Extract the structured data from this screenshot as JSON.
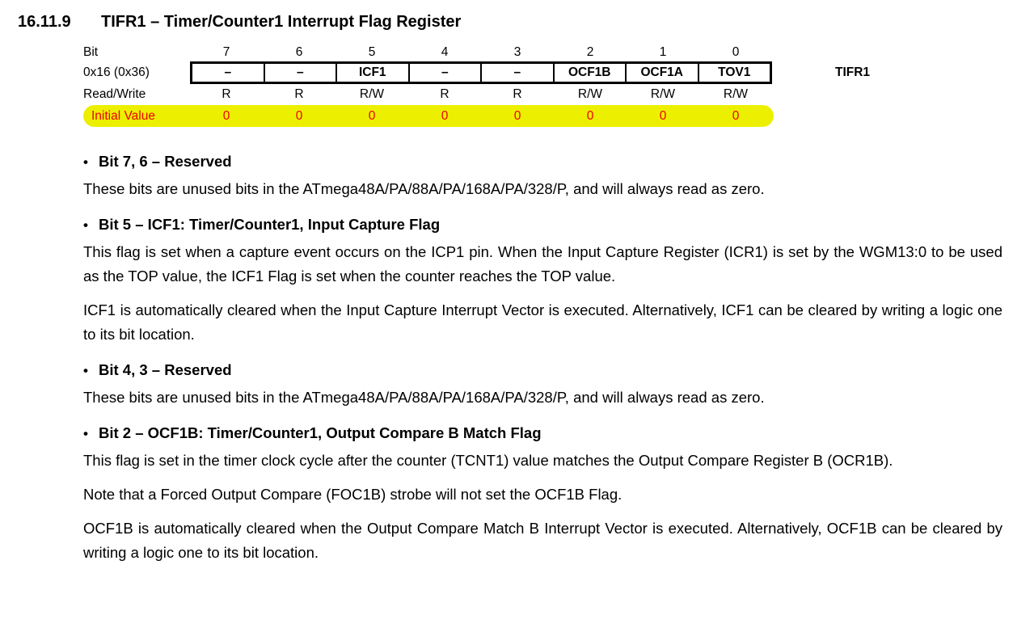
{
  "heading": {
    "number": "16.11.9",
    "title": "TIFR1 – Timer/Counter1 Interrupt Flag Register"
  },
  "register": {
    "bit_label": "Bit",
    "address": "0x16 (0x36)",
    "name": "TIFR1",
    "bits": [
      "7",
      "6",
      "5",
      "4",
      "3",
      "2",
      "1",
      "0"
    ],
    "fields": [
      "–",
      "–",
      "ICF1",
      "–",
      "–",
      "OCF1B",
      "OCF1A",
      "TOV1"
    ],
    "read_write_label": "Read/Write",
    "read_write": [
      "R",
      "R",
      "R/W",
      "R",
      "R",
      "R/W",
      "R/W",
      "R/W"
    ],
    "initial_value_label": "Initial Value",
    "initial_values": [
      "0",
      "0",
      "0",
      "0",
      "0",
      "0",
      "0",
      "0"
    ],
    "highlight_color": "#ecf000",
    "value_color": "#ee0000"
  },
  "sections": [
    {
      "heading": "Bit 7, 6 – Reserved",
      "paragraphs": [
        "These bits are unused bits in the ATmega48A/PA/88A/PA/168A/PA/328/P, and will always read as zero."
      ]
    },
    {
      "heading": "Bit 5 – ICF1: Timer/Counter1, Input Capture Flag",
      "paragraphs": [
        "This flag is set when a capture event occurs on the ICP1 pin. When the Input Capture Register (ICR1) is set by the WGM13:0 to be used as the TOP value, the ICF1 Flag is set when the counter reaches the TOP value.",
        "ICF1 is automatically cleared when the Input Capture Interrupt Vector is executed. Alternatively, ICF1 can be cleared by writing a logic one to its bit location."
      ]
    },
    {
      "heading": "Bit 4, 3 – Reserved",
      "paragraphs": [
        "These bits are unused bits in the ATmega48A/PA/88A/PA/168A/PA/328/P, and will always read as zero."
      ]
    },
    {
      "heading": "Bit 2 – OCF1B: Timer/Counter1, Output Compare B Match Flag",
      "paragraphs": [
        "This flag is set in the timer clock cycle after the counter (TCNT1) value matches the Output Compare Register B (OCR1B).",
        "Note that a Forced Output Compare (FOC1B) strobe will not set the OCF1B Flag.",
        "OCF1B is automatically cleared when the Output Compare Match B Interrupt Vector is executed. Alternatively, OCF1B can be cleared by writing a logic one to its bit location."
      ]
    }
  ]
}
